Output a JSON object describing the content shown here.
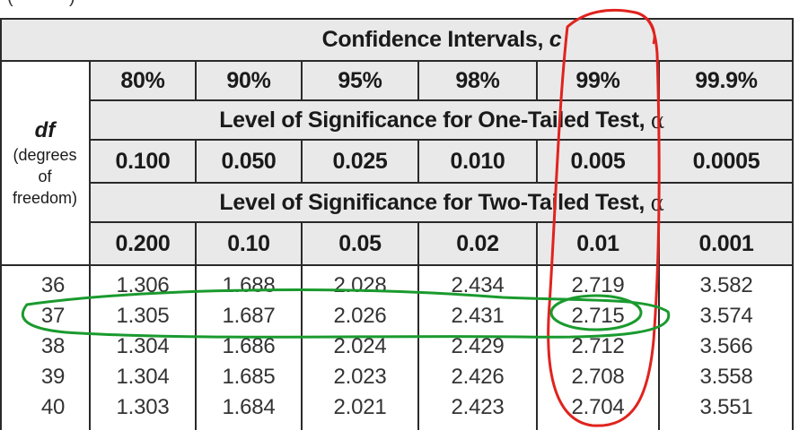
{
  "header": {
    "confidence_title": "Confidence Intervals,",
    "confidence_var": "c",
    "confidence_levels": [
      "80%",
      "90%",
      "95%",
      "98%",
      "99%",
      "99.9%"
    ],
    "one_tailed_title": "Level of Significance for One-Tailed Test,",
    "one_tailed_values": [
      "0.100",
      "0.050",
      "0.025",
      "0.010",
      "0.005",
      "0.0005"
    ],
    "two_tailed_title": "Level of Significance for Two-Tailed Test,",
    "two_tailed_values": [
      "0.200",
      "0.10",
      "0.05",
      "0.02",
      "0.01",
      "0.001"
    ],
    "alpha_symbol": "α"
  },
  "df_label": {
    "df": "df",
    "line1": "(degrees",
    "line2": "of",
    "line3": "freedom)"
  },
  "top_crop_text": "(--------)",
  "rows": [
    {
      "df": "36",
      "values": [
        "1.306",
        "1.688",
        "2.028",
        "2.434",
        "2.719",
        "3.582"
      ]
    },
    {
      "df": "37",
      "values": [
        "1.305",
        "1.687",
        "2.026",
        "2.431",
        "2.715",
        "3.574"
      ]
    },
    {
      "df": "38",
      "values": [
        "1.304",
        "1.686",
        "2.024",
        "2.429",
        "2.712",
        "3.566"
      ]
    },
    {
      "df": "39",
      "values": [
        "1.304",
        "1.685",
        "2.023",
        "2.426",
        "2.708",
        "3.558"
      ]
    },
    {
      "df": "40",
      "values": [
        "1.303",
        "1.684",
        "2.021",
        "2.423",
        "2.704",
        "3.551"
      ]
    }
  ],
  "annotations": {
    "red_color": "#e0231e",
    "green_color": "#1a9a2e",
    "red_marks": "99% column",
    "green_marks": "df 37 row and 2.715"
  }
}
